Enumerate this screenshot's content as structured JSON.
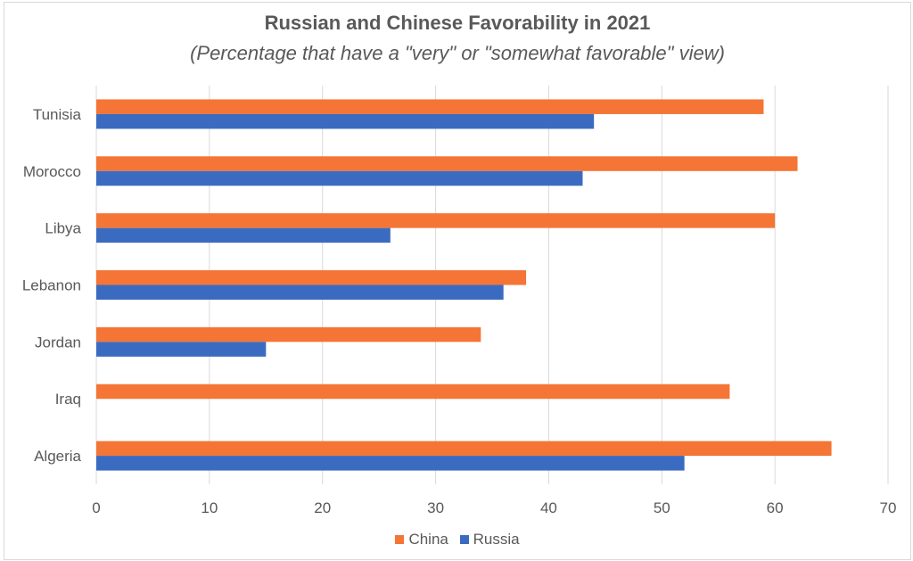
{
  "colors": {
    "china": "#f47536",
    "russia": "#3b6bc1",
    "grid": "#d9d9d9",
    "text": "#595959"
  },
  "chart_data": {
    "type": "bar",
    "orientation": "horizontal",
    "title": "Russian and Chinese Favorability in 2021",
    "subtitle": "(Percentage that have a \"very\" or \"somewhat favorable\" view)",
    "categories": [
      "Tunisia",
      "Morocco",
      "Libya",
      "Lebanon",
      "Jordan",
      "Iraq",
      "Algeria"
    ],
    "series": [
      {
        "name": "China",
        "color": "#f47536",
        "values": [
          59,
          62,
          60,
          38,
          34,
          56,
          65
        ]
      },
      {
        "name": "Russia",
        "color": "#3b6bc1",
        "values": [
          44,
          43,
          26,
          36,
          15,
          null,
          52
        ]
      }
    ],
    "xlim": [
      0,
      70
    ],
    "xticks": [
      0,
      10,
      20,
      30,
      40,
      50,
      60,
      70
    ],
    "grid": true,
    "legend_position": "bottom"
  }
}
